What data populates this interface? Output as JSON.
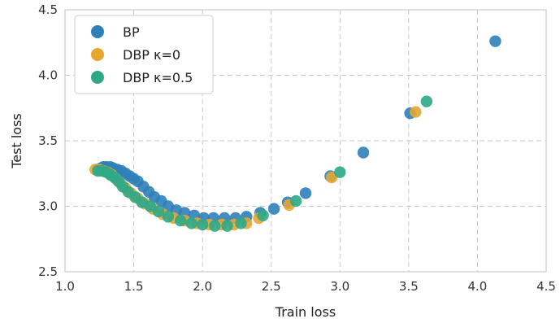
{
  "chart_data": {
    "type": "scatter",
    "title": "",
    "xlabel": "Train loss",
    "ylabel": "Test loss",
    "xlim": [
      1.0,
      4.5
    ],
    "ylim": [
      2.5,
      4.5
    ],
    "xticks": [
      "1.0",
      "1.5",
      "2.0",
      "2.5",
      "3.0",
      "3.5",
      "4.0",
      "4.5"
    ],
    "yticks": [
      "2.5",
      "3.0",
      "3.5",
      "4.0",
      "4.5"
    ],
    "grid": true,
    "legend_position": "top-left",
    "series": [
      {
        "name": "BP",
        "color": "#2f7fb8",
        "x": [
          1.24,
          1.26,
          1.28,
          1.3,
          1.33,
          1.35,
          1.38,
          1.41,
          1.44,
          1.47,
          1.5,
          1.53,
          1.57,
          1.61,
          1.65,
          1.7,
          1.75,
          1.81,
          1.87,
          1.94,
          2.01,
          2.08,
          2.16,
          2.24,
          2.32,
          2.42,
          2.52,
          2.62,
          2.75,
          2.93,
          3.17,
          3.51,
          4.13
        ],
        "y": [
          3.28,
          3.29,
          3.3,
          3.3,
          3.3,
          3.29,
          3.28,
          3.27,
          3.25,
          3.23,
          3.21,
          3.19,
          3.15,
          3.11,
          3.07,
          3.04,
          3.0,
          2.97,
          2.95,
          2.93,
          2.91,
          2.91,
          2.91,
          2.91,
          2.92,
          2.95,
          2.98,
          3.03,
          3.1,
          3.23,
          3.41,
          3.71,
          4.26
        ]
      },
      {
        "name": "DBP κ=0",
        "color": "#e5a632",
        "x": [
          1.22,
          1.25,
          1.28,
          1.31,
          1.34,
          1.37,
          1.4,
          1.44,
          1.48,
          1.53,
          1.58,
          1.64,
          1.71,
          1.79,
          1.87,
          1.96,
          2.05,
          2.14,
          2.23,
          2.32,
          2.41,
          2.63,
          2.94,
          3.55
        ],
        "y": [
          3.28,
          3.28,
          3.27,
          3.26,
          3.24,
          3.21,
          3.18,
          3.14,
          3.1,
          3.06,
          3.02,
          2.98,
          2.94,
          2.91,
          2.89,
          2.87,
          2.86,
          2.86,
          2.86,
          2.87,
          2.91,
          3.01,
          3.22,
          3.72
        ]
      },
      {
        "name": "DBP κ=0.5",
        "color": "#2ea887",
        "x": [
          1.24,
          1.27,
          1.3,
          1.33,
          1.36,
          1.39,
          1.42,
          1.46,
          1.51,
          1.56,
          1.62,
          1.68,
          1.75,
          1.84,
          1.92,
          2.0,
          2.09,
          2.18,
          2.28,
          2.44,
          2.68,
          3.0,
          3.63
        ],
        "y": [
          3.27,
          3.27,
          3.26,
          3.24,
          3.22,
          3.19,
          3.15,
          3.11,
          3.07,
          3.03,
          3.0,
          2.96,
          2.92,
          2.89,
          2.87,
          2.86,
          2.85,
          2.85,
          2.87,
          2.93,
          3.04,
          3.26,
          3.8
        ]
      }
    ]
  }
}
